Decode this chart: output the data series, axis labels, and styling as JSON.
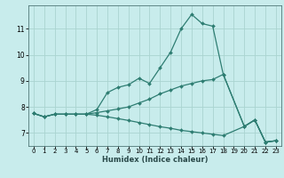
{
  "xlabel": "Humidex (Indice chaleur)",
  "bg_color": "#c8ecec",
  "line_color": "#2e7d72",
  "grid_color": "#aad4d0",
  "xlim": [
    -0.5,
    23.5
  ],
  "ylim": [
    6.5,
    11.9
  ],
  "yticks": [
    7,
    8,
    9,
    10,
    11
  ],
  "xticks": [
    0,
    1,
    2,
    3,
    4,
    5,
    6,
    7,
    8,
    9,
    10,
    11,
    12,
    13,
    14,
    15,
    16,
    17,
    18,
    19,
    20,
    21,
    22,
    23
  ],
  "series": [
    {
      "x": [
        0,
        1,
        2,
        3,
        4,
        5,
        6,
        7,
        8,
        9,
        10,
        11,
        12,
        13,
        14,
        15,
        16,
        17,
        18,
        20,
        21,
        22,
        23
      ],
      "y": [
        7.75,
        7.62,
        7.72,
        7.72,
        7.72,
        7.72,
        7.9,
        8.55,
        8.75,
        8.85,
        9.1,
        8.9,
        9.5,
        10.1,
        11.0,
        11.55,
        11.2,
        11.1,
        9.25,
        7.25,
        7.5,
        6.65,
        6.7
      ]
    },
    {
      "x": [
        0,
        1,
        2,
        3,
        4,
        5,
        6,
        7,
        8,
        9,
        10,
        11,
        12,
        13,
        14,
        15,
        16,
        17,
        18,
        20,
        21,
        22,
        23
      ],
      "y": [
        7.75,
        7.62,
        7.72,
        7.72,
        7.72,
        7.72,
        7.78,
        7.85,
        7.92,
        8.0,
        8.15,
        8.3,
        8.5,
        8.65,
        8.8,
        8.9,
        9.0,
        9.05,
        9.25,
        7.25,
        7.5,
        6.65,
        6.7
      ]
    },
    {
      "x": [
        0,
        1,
        2,
        3,
        4,
        5,
        6,
        7,
        8,
        9,
        10,
        11,
        12,
        13,
        14,
        15,
        16,
        17,
        18,
        20,
        21,
        22,
        23
      ],
      "y": [
        7.75,
        7.62,
        7.72,
        7.72,
        7.72,
        7.72,
        7.68,
        7.62,
        7.55,
        7.48,
        7.4,
        7.32,
        7.24,
        7.18,
        7.1,
        7.05,
        7.0,
        6.95,
        6.9,
        7.25,
        7.5,
        6.65,
        6.7
      ]
    }
  ]
}
